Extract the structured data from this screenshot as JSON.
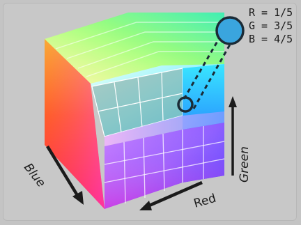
{
  "labels": {
    "r": "R = 1/5",
    "g": "G = 3/5",
    "b": "B = 4/5",
    "axis_blue": "Blue",
    "axis_red": "Red",
    "axis_green": "Green"
  },
  "colors": {
    "background": "#c4c4c4",
    "selected_color": "#3aa5de",
    "outline": "#1b2b36"
  },
  "selected_sample": {
    "r": "1/5",
    "g": "3/5",
    "b": "4/5"
  }
}
